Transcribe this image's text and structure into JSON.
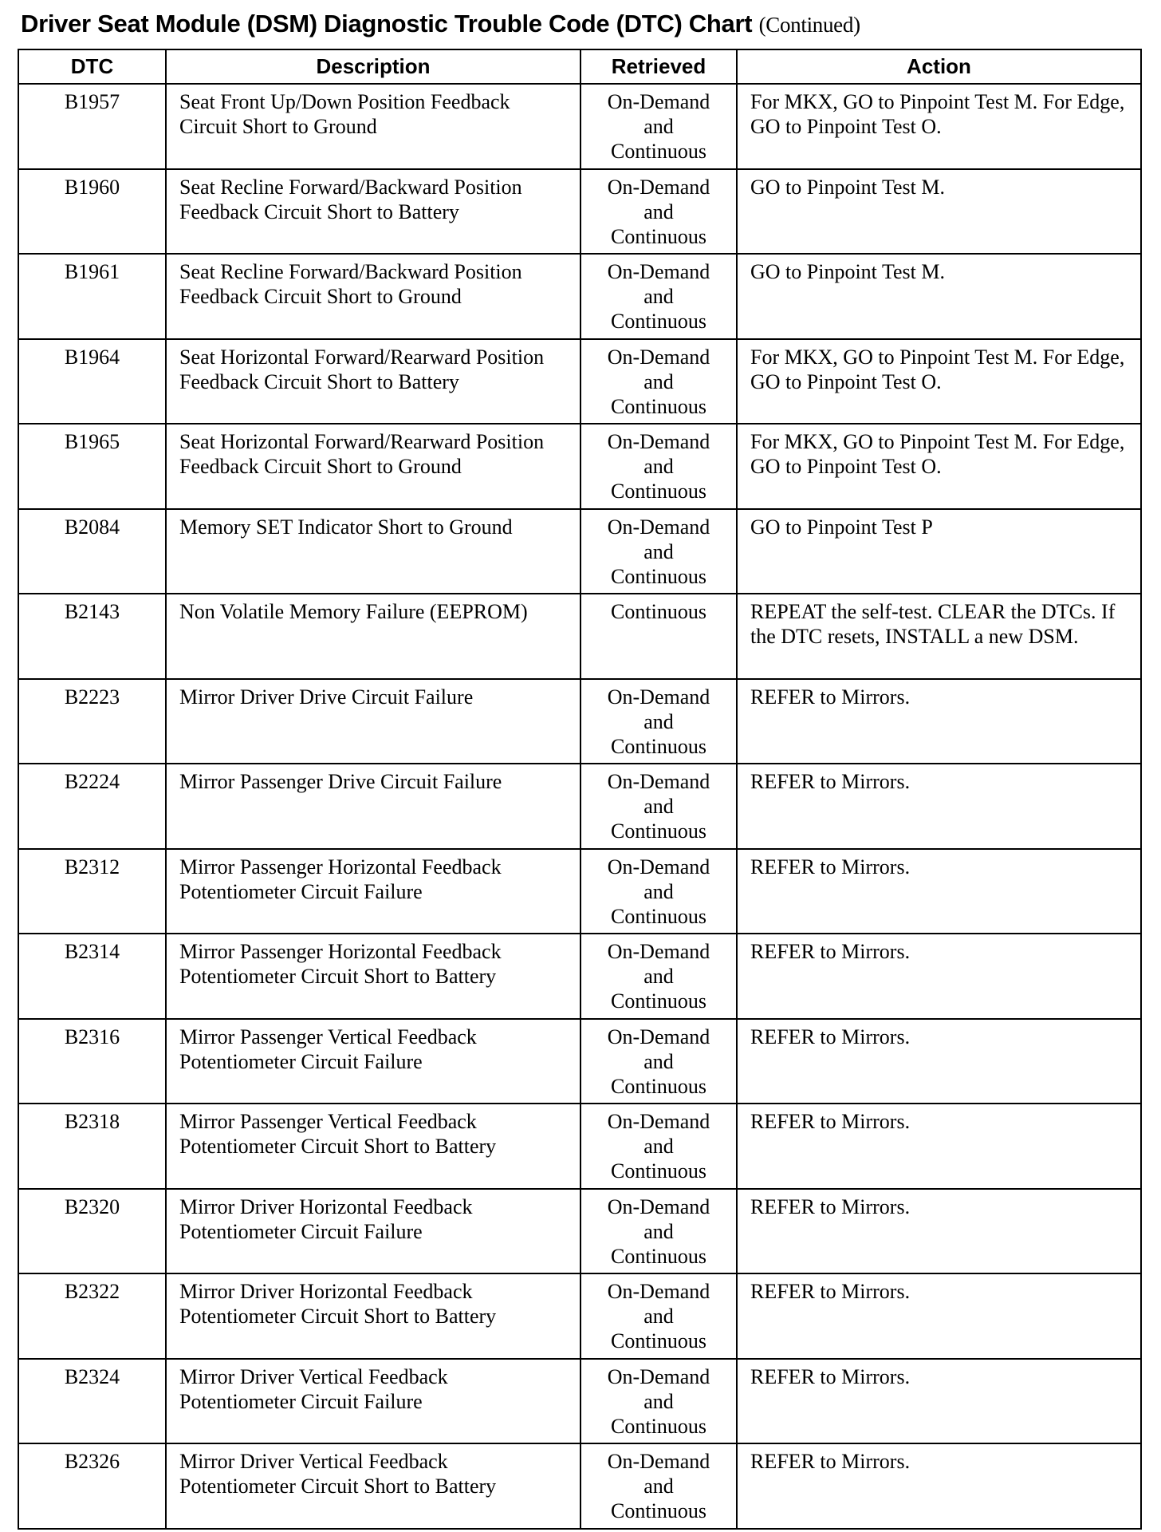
{
  "title": "Driver Seat Module (DSM) Diagnostic Trouble Code (DTC) Chart",
  "title_suffix": "(Continued)",
  "columns": [
    "DTC",
    "Description",
    "Retrieved",
    "Action"
  ],
  "rows": [
    {
      "dtc": "B1957",
      "description": "Seat Front Up/Down Position Feedback Circuit Short to Ground",
      "retrieved": "On-Demand and Continuous",
      "action": "For MKX, GO to Pinpoint Test M. For Edge, GO to Pinpoint Test O."
    },
    {
      "dtc": "B1960",
      "description": "Seat Recline Forward/Backward Position Feedback Circuit Short to Battery",
      "retrieved": "On-Demand and Continuous",
      "action": "GO to Pinpoint Test M."
    },
    {
      "dtc": "B1961",
      "description": "Seat Recline Forward/Backward Position Feedback Circuit Short to Ground",
      "retrieved": "On-Demand and Continuous",
      "action": "GO to Pinpoint Test M."
    },
    {
      "dtc": "B1964",
      "description": "Seat Horizontal Forward/Rearward Position Feedback Circuit Short to Battery",
      "retrieved": "On-Demand and Continuous",
      "action": "For MKX, GO to Pinpoint Test M. For Edge, GO to Pinpoint Test O."
    },
    {
      "dtc": "B1965",
      "description": "Seat Horizontal Forward/Rearward Position Feedback Circuit Short to Ground",
      "retrieved": "On-Demand and Continuous",
      "action": "For MKX, GO to Pinpoint Test M. For Edge, GO to Pinpoint Test O."
    },
    {
      "dtc": "B2084",
      "description": "Memory SET Indicator Short to Ground",
      "retrieved": "On-Demand and Continuous",
      "action": "GO to Pinpoint Test P"
    },
    {
      "dtc": "B2143",
      "description": "Non Volatile Memory Failure (EEPROM)",
      "retrieved": "Continuous",
      "action": "REPEAT the self-test. CLEAR the DTCs. If the DTC resets, INSTALL a new DSM."
    },
    {
      "dtc": "B2223",
      "description": "Mirror Driver Drive Circuit Failure",
      "retrieved": "On-Demand and Continuous",
      "action": "REFER to Mirrors."
    },
    {
      "dtc": "B2224",
      "description": "Mirror Passenger Drive Circuit Failure",
      "retrieved": "On-Demand and Continuous",
      "action": "REFER to Mirrors."
    },
    {
      "dtc": "B2312",
      "description": "Mirror Passenger Horizontal Feedback Potentiometer Circuit Failure",
      "retrieved": "On-Demand and Continuous",
      "action": "REFER to Mirrors."
    },
    {
      "dtc": "B2314",
      "description": "Mirror Passenger Horizontal Feedback Potentiometer Circuit Short to Battery",
      "retrieved": "On-Demand and Continuous",
      "action": "REFER to Mirrors."
    },
    {
      "dtc": "B2316",
      "description": "Mirror Passenger Vertical Feedback Potentiometer Circuit Failure",
      "retrieved": "On-Demand and Continuous",
      "action": "REFER to Mirrors."
    },
    {
      "dtc": "B2318",
      "description": "Mirror Passenger Vertical Feedback Potentiometer Circuit Short to Battery",
      "retrieved": "On-Demand and Continuous",
      "action": "REFER to Mirrors."
    },
    {
      "dtc": "B2320",
      "description": "Mirror Driver Horizontal Feedback Potentiometer Circuit Failure",
      "retrieved": "On-Demand and Continuous",
      "action": "REFER to Mirrors."
    },
    {
      "dtc": "B2322",
      "description": "Mirror Driver Horizontal Feedback Potentiometer Circuit Short to Battery",
      "retrieved": "On-Demand and Continuous",
      "action": "REFER to Mirrors."
    },
    {
      "dtc": "B2324",
      "description": "Mirror Driver Vertical Feedback Potentiometer Circuit Failure",
      "retrieved": "On-Demand and Continuous",
      "action": "REFER to Mirrors."
    },
    {
      "dtc": "B2326",
      "description": "Mirror Driver Vertical Feedback Potentiometer Circuit Short to Battery",
      "retrieved": "On-Demand and Continuous",
      "action": "REFER to Mirrors."
    }
  ]
}
